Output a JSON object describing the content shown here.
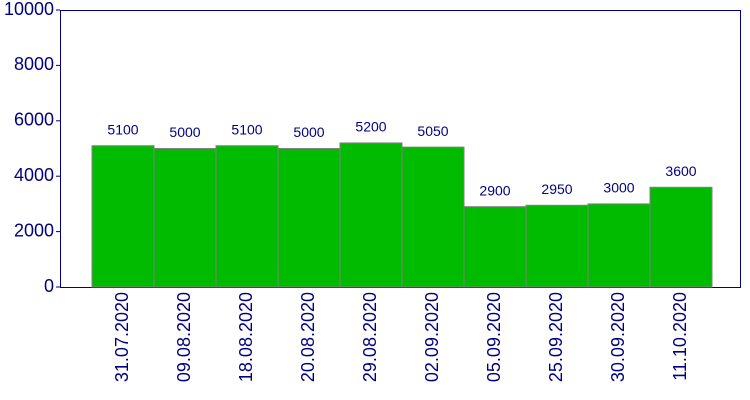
{
  "chart_data": {
    "type": "bar",
    "categories": [
      "31.07.2020",
      "09.08.2020",
      "18.08.2020",
      "20.08.2020",
      "29.08.2020",
      "02.09.2020",
      "05.09.2020",
      "25.09.2020",
      "30.09.2020",
      "11.10.2020"
    ],
    "values": [
      5100,
      5000,
      5100,
      5000,
      5200,
      5050,
      2900,
      2950,
      3000,
      3600
    ],
    "color": "#00bb00",
    "ylim": [
      0,
      10000
    ],
    "yticks": [
      0,
      2000,
      4000,
      6000,
      8000,
      10000
    ],
    "grid": false
  }
}
